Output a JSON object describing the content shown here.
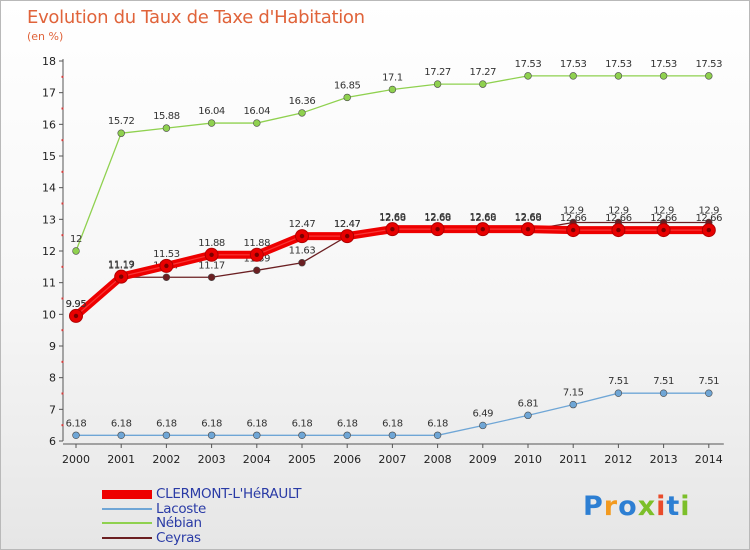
{
  "title": "Evolution du Taux de Taxe d'Habitation",
  "subtitle": "(en %)",
  "logo": {
    "text": "Proxiti",
    "colors": [
      "#2d7fd3",
      "#f29a1f",
      "#2d7fd3",
      "#7cbf2a",
      "#e94b2b",
      "#2d7fd3",
      "#7cbf2a"
    ]
  },
  "chart_data": {
    "type": "line",
    "x": [
      "2000",
      "2001",
      "2002",
      "2003",
      "2004",
      "2005",
      "2006",
      "2007",
      "2008",
      "2009",
      "2010",
      "2011",
      "2012",
      "2013",
      "2014"
    ],
    "ylim": [
      6,
      18
    ],
    "yticks": [
      6,
      7,
      8,
      9,
      10,
      11,
      12,
      13,
      14,
      15,
      16,
      17,
      18
    ],
    "grid": false,
    "legend_position": "bottom-left",
    "series": [
      {
        "name": "Nébian",
        "color": "#8fd14f",
        "values": [
          12,
          15.72,
          15.88,
          16.04,
          16.04,
          16.36,
          16.85,
          17.1,
          17.27,
          17.27,
          17.53,
          17.53,
          17.53,
          17.53,
          17.53
        ],
        "labels": [
          "12",
          "15.72",
          "15.88",
          "16.04",
          "16.04",
          "16.36",
          "16.85",
          "17.1",
          "17.27",
          "17.27",
          "17.53",
          "17.53",
          "17.53",
          "17.53",
          "17.53"
        ]
      },
      {
        "name": "Lacoste",
        "color": "#6fa6d6",
        "values": [
          6.18,
          6.18,
          6.18,
          6.18,
          6.18,
          6.18,
          6.18,
          6.18,
          6.18,
          6.49,
          6.81,
          7.15,
          7.51,
          7.51,
          7.51
        ],
        "labels": [
          "6.18",
          "6.18",
          "6.18",
          "6.18",
          "6.18",
          "6.18",
          "6.18",
          "6.18",
          "6.18",
          "6.49",
          "6.81",
          "7.15",
          "7.51",
          "7.51",
          "7.51"
        ]
      },
      {
        "name": "Ceyras",
        "color": "#6b1f22",
        "values": [
          9.95,
          11.17,
          11.17,
          11.17,
          11.39,
          11.63,
          12.47,
          12.66,
          12.66,
          12.66,
          12.66,
          12.9,
          12.9,
          12.9,
          12.9
        ],
        "labels": [
          "9.95",
          "11.17",
          "11.17",
          "11.17",
          "11.39",
          "11.63",
          "12.47",
          "12.66",
          "12.66",
          "12.66",
          "12.66",
          "12.9",
          "12.9",
          "12.9",
          "12.9"
        ]
      },
      {
        "name": "CLERMONT-L'HéRAULT",
        "color": "#ee0000",
        "values": [
          9.95,
          11.19,
          11.53,
          11.88,
          11.88,
          12.47,
          12.47,
          12.69,
          12.69,
          12.69,
          12.69,
          12.66,
          12.66,
          12.66,
          12.66
        ],
        "labels": [
          "9.95",
          "11.19",
          "11.53",
          "11.88",
          "11.88",
          "12.47",
          "12.47",
          "12.69",
          "12.69",
          "12.69",
          "12.69",
          "12.66",
          "12.66",
          "12.66",
          "12.66"
        ]
      }
    ]
  },
  "legend": [
    {
      "label": "CLERMONT-L'HéRAULT",
      "color": "#ee0000",
      "weight": "thick"
    },
    {
      "label": "Lacoste",
      "color": "#6fa6d6",
      "weight": "thin"
    },
    {
      "label": "Nébian",
      "color": "#8fd14f",
      "weight": "thin"
    },
    {
      "label": "Ceyras",
      "color": "#6b1f22",
      "weight": "thin"
    }
  ]
}
